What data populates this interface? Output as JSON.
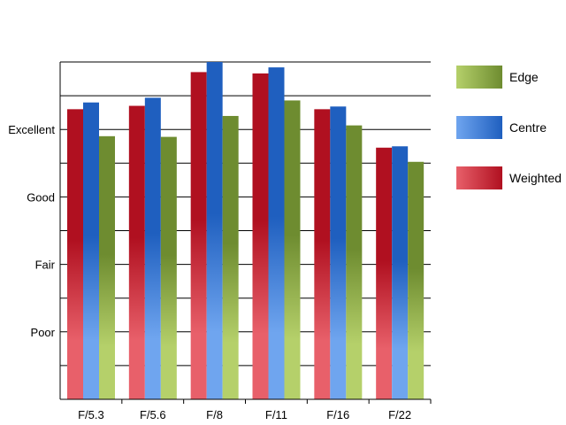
{
  "chart_data": {
    "type": "bar",
    "categories": [
      "F/5.3",
      "F/5.6",
      "F/8",
      "F/11",
      "F/16",
      "F/22"
    ],
    "series": [
      {
        "name": "Weighted",
        "values": [
          4.3,
          4.35,
          4.85,
          4.83,
          4.3,
          3.73
        ],
        "color_dark": "#b01020",
        "color_light": "#e8606a"
      },
      {
        "name": "Centre",
        "values": [
          4.4,
          4.47,
          5.0,
          4.92,
          4.34,
          3.75
        ],
        "color_dark": "#1f5fbf",
        "color_light": "#6fa5ef"
      },
      {
        "name": "Edge",
        "values": [
          3.9,
          3.89,
          4.2,
          4.43,
          4.06,
          3.52
        ],
        "color_dark": "#6e8c30",
        "color_light": "#b5d06a"
      }
    ],
    "y_tick_labels": [
      {
        "value": 1,
        "label": "Poor"
      },
      {
        "value": 2,
        "label": "Fair"
      },
      {
        "value": 3,
        "label": "Good"
      },
      {
        "value": 4,
        "label": "Excellent"
      }
    ],
    "ylim": [
      0,
      5
    ],
    "grid": true,
    "legend_order": [
      "Edge",
      "Centre",
      "Weighted"
    ],
    "legend_position": "right",
    "xlabel": "",
    "ylabel": "",
    "title": ""
  }
}
